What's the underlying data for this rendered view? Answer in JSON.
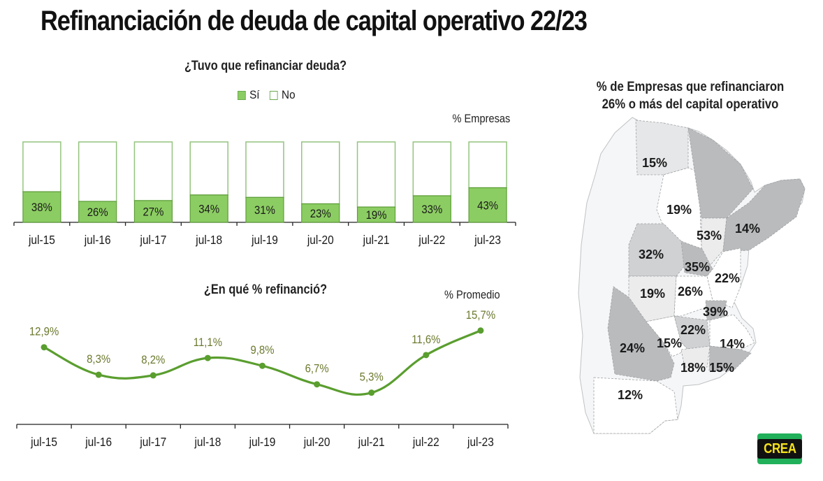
{
  "title": "Refinanciación de deuda de capital operativo 22/23",
  "chart_data": [
    {
      "type": "bar",
      "title": "¿Tuvo que refinanciar deuda?",
      "unit_label": "% Empresas",
      "legend": [
        {
          "name": "Sí",
          "color": "#8ccd63"
        },
        {
          "name": "No",
          "color": "#ffffff"
        }
      ],
      "legend_position": "top-center",
      "categories": [
        "jul-15",
        "jul-16",
        "jul-17",
        "jul-18",
        "jul-19",
        "jul-20",
        "jul-21",
        "jul-22",
        "jul-23"
      ],
      "series": [
        {
          "name": "Sí",
          "values": [
            38,
            26,
            27,
            34,
            31,
            23,
            19,
            33,
            43
          ]
        },
        {
          "name": "No",
          "values": [
            62,
            74,
            73,
            66,
            69,
            77,
            81,
            67,
            57
          ]
        }
      ],
      "labels": [
        "38%",
        "26%",
        "27%",
        "34%",
        "31%",
        "23%",
        "19%",
        "33%",
        "43%"
      ],
      "stacked": true,
      "ylim": [
        0,
        100
      ],
      "grid": false
    },
    {
      "type": "line",
      "title": "¿En qué % refinanció?",
      "unit_label": "% Promedio",
      "categories": [
        "jul-15",
        "jul-16",
        "jul-17",
        "jul-18",
        "jul-19",
        "jul-20",
        "jul-21",
        "jul-22",
        "jul-23"
      ],
      "series": [
        {
          "name": "% Promedio",
          "color": "#5a9e2f",
          "values": [
            12.9,
            8.3,
            8.2,
            11.1,
            9.8,
            6.7,
            5.3,
            11.6,
            15.7
          ]
        }
      ],
      "labels": [
        "12,9%",
        "8,3%",
        "8,2%",
        "11,1%",
        "9,8%",
        "6,7%",
        "5,3%",
        "11,6%",
        "15,7%"
      ],
      "label_color": "#6b7a2e",
      "ylim": [
        0,
        17
      ],
      "grid": false
    }
  ],
  "map": {
    "title_line1": "% de Empresas que refinanciaron",
    "title_line2": "26% o más del capital operativo",
    "regions": [
      {
        "label": "15%",
        "value": 15,
        "shade": "#e6e7e8"
      },
      {
        "label": "19%",
        "value": 19,
        "shade": "#ffffff"
      },
      {
        "label": "14%",
        "value": 14,
        "shade": "#b9bbbd"
      },
      {
        "label": "53%",
        "value": 53,
        "shade": "#ececed"
      },
      {
        "label": "32%",
        "value": 32,
        "shade": "#cfd1d3"
      },
      {
        "label": "35%",
        "value": 35,
        "shade": "#b9bbbd"
      },
      {
        "label": "22%",
        "value": 22,
        "shade": "#ffffff"
      },
      {
        "label": "19%",
        "value": 19,
        "shade": "#ececed"
      },
      {
        "label": "26%",
        "value": 26,
        "shade": "#ffffff"
      },
      {
        "label": "39%",
        "value": 39,
        "shade": "#b9bbbd"
      },
      {
        "label": "22%",
        "value": 22,
        "shade": "#cfd1d3"
      },
      {
        "label": "24%",
        "value": 24,
        "shade": "#b9bbbd"
      },
      {
        "label": "15%",
        "value": 15,
        "shade": "#ffffff"
      },
      {
        "label": "14%",
        "value": 14,
        "shade": "#ffffff"
      },
      {
        "label": "18%",
        "value": 18,
        "shade": "#ececed"
      },
      {
        "label": "15%",
        "value": 15,
        "shade": "#b9bbbd"
      },
      {
        "label": "12%",
        "value": 12,
        "shade": "#ffffff"
      }
    ]
  },
  "logo": {
    "text": "CREA",
    "bg": "#21b15a",
    "band": "#111111",
    "fg": "#f6e21c"
  }
}
